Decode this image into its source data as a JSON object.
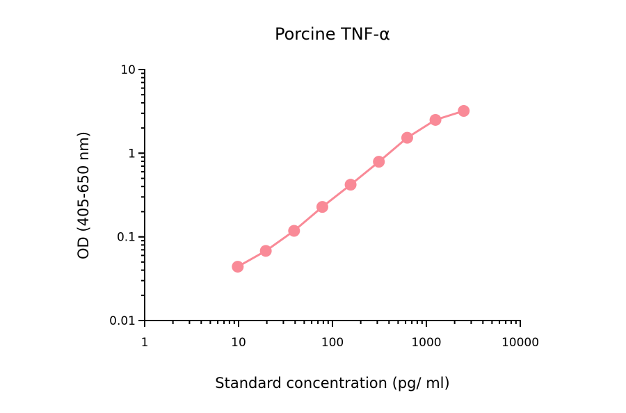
{
  "chart_data": {
    "type": "line",
    "title": "Porcine TNF-α",
    "xlabel": "Standard concentration (pg/ ml)",
    "ylabel": "OD (405-650 nm)",
    "xscale": "log",
    "yscale": "log",
    "xlim": [
      1,
      10000
    ],
    "ylim": [
      0.01,
      10
    ],
    "xticks": [
      "1",
      "10",
      "100",
      "1000",
      "10000"
    ],
    "yticks": [
      "0.01",
      "0.1",
      "1",
      "10"
    ],
    "grid": false,
    "legend": null,
    "series": [
      {
        "name": "Porcine TNF-α",
        "color": "#f98a97",
        "marker": "circle",
        "x": [
          9.8,
          19.5,
          39,
          78,
          156,
          312,
          625,
          1250,
          2500
        ],
        "y": [
          0.044,
          0.068,
          0.118,
          0.228,
          0.42,
          0.79,
          1.53,
          2.5,
          3.2
        ]
      }
    ]
  }
}
